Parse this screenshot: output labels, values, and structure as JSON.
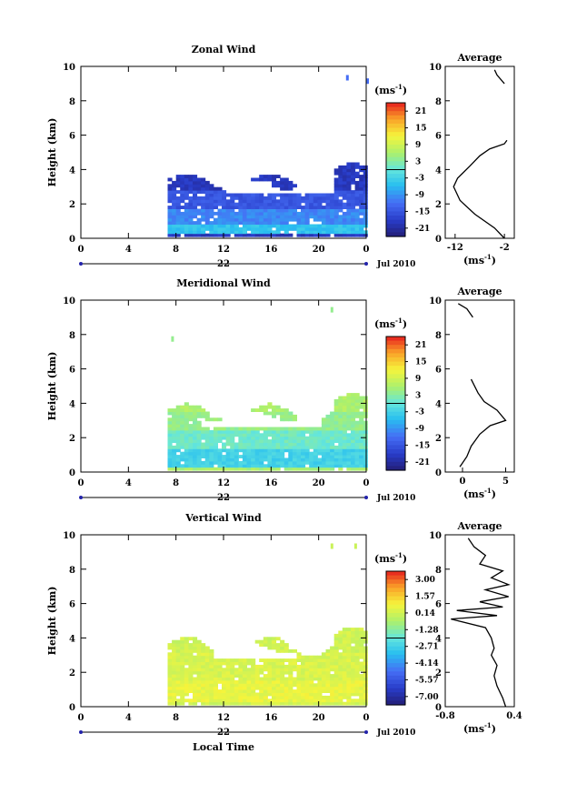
{
  "chart_data": [
    {
      "type": "heatmap",
      "title": "Zonal Wind",
      "ylabel": "Height (km)",
      "x_ticks": [
        "0",
        "4",
        "8",
        "12",
        "16",
        "20",
        "0"
      ],
      "xlim": [
        0,
        24
      ],
      "y_ticks": [
        "0",
        "2",
        "4",
        "6",
        "8",
        "10"
      ],
      "ylim": [
        0,
        10
      ],
      "date_label": "22",
      "date_suffix": "Jul 2010",
      "colorbar": {
        "unit": "(ms",
        "unit_exp": "-1",
        "unit_close": ")",
        "ticks": [
          "21",
          "15",
          "9",
          "3",
          "-3",
          "-9",
          "-15",
          "-21"
        ],
        "range": [
          -24,
          24
        ]
      },
      "field": {
        "time_range": [
          7.3,
          24
        ],
        "top_base": 3.2,
        "top_amp": 0.5,
        "levels": [
          {
            "min": 0.2,
            "max": 0.8,
            "value": -5
          },
          {
            "min": 0.8,
            "max": 1.6,
            "value": -10
          },
          {
            "min": 1.6,
            "max": 2.7,
            "value": -15
          },
          {
            "min": 2.7,
            "max": 3.7,
            "value": -19
          }
        ],
        "gap": {
          "t0": 12,
          "t1": 21,
          "y0": 2.6,
          "y1": 3.0
        },
        "sparse": [
          {
            "t": 22.3,
            "y": 9.3,
            "value": -12
          },
          {
            "t": 24,
            "y": 9.1,
            "value": -12
          }
        ]
      },
      "profile": {
        "title": "Average",
        "x_ticks": [
          "-12",
          "-2"
        ],
        "xlim": [
          -14,
          0
        ],
        "xlabel": "(ms",
        "xlabel_exp": "-1",
        "xlabel_close": ")",
        "y_ticks": [
          "0",
          "2",
          "4",
          "6",
          "8",
          "10"
        ],
        "ylim": [
          0,
          10
        ],
        "points": [
          [
            -2,
            0
          ],
          [
            -4,
            0.6
          ],
          [
            -8,
            1.4
          ],
          [
            -11,
            2.2
          ],
          [
            -12.3,
            3
          ],
          [
            -11.5,
            3.5
          ],
          [
            -9,
            4.2
          ],
          [
            -7,
            4.8
          ],
          [
            -5,
            5.2
          ],
          [
            -2,
            5.5
          ],
          [
            -1.5,
            5.7
          ]
        ],
        "points2": [
          [
            -4,
            9.8
          ],
          [
            -3.5,
            9.5
          ],
          [
            -2,
            9
          ]
        ]
      }
    },
    {
      "type": "heatmap",
      "title": "Meridional Wind",
      "ylabel": "Height (km)",
      "x_ticks": [
        "0",
        "4",
        "8",
        "12",
        "16",
        "20",
        "0"
      ],
      "xlim": [
        0,
        24
      ],
      "y_ticks": [
        "0",
        "2",
        "4",
        "6",
        "8",
        "10"
      ],
      "ylim": [
        0,
        10
      ],
      "date_label": "22",
      "date_suffix": "Jul 2010",
      "colorbar": {
        "unit": "(ms",
        "unit_exp": "-1",
        "unit_close": ")",
        "ticks": [
          "21",
          "15",
          "9",
          "3",
          "-3",
          "-9",
          "-15",
          "-21"
        ],
        "range": [
          -24,
          24
        ]
      },
      "field": {
        "time_range": [
          7.3,
          24
        ],
        "top_base": 3.4,
        "top_amp": 0.5,
        "levels": [
          {
            "min": 0.2,
            "max": 1.2,
            "value": -3
          },
          {
            "min": 1.2,
            "max": 2.4,
            "value": 1
          },
          {
            "min": 2.4,
            "max": 3.4,
            "value": 4
          },
          {
            "min": 3.4,
            "max": 4.2,
            "value": 6
          }
        ],
        "gap": {
          "t0": 10,
          "t1": 20,
          "y0": 2.6,
          "y1": 3.2
        },
        "sparse": [
          {
            "t": 21,
            "y": 9.4,
            "value": 4
          },
          {
            "t": 7.6,
            "y": 7.7,
            "value": 4
          }
        ]
      },
      "profile": {
        "title": "Average",
        "x_ticks": [
          "0",
          "5"
        ],
        "xlim": [
          -2,
          6
        ],
        "xlabel": "(ms",
        "xlabel_exp": "-1",
        "xlabel_close": ")",
        "y_ticks": [
          "0",
          "2",
          "4",
          "6",
          "8",
          "10"
        ],
        "ylim": [
          0,
          10
        ],
        "points": [
          [
            -0.3,
            0.3
          ],
          [
            0.5,
            0.9
          ],
          [
            1,
            1.5
          ],
          [
            2,
            2.2
          ],
          [
            3.2,
            2.7
          ],
          [
            5,
            3
          ],
          [
            4,
            3.6
          ],
          [
            2.5,
            4.1
          ],
          [
            1.8,
            4.6
          ],
          [
            1,
            5.4
          ]
        ],
        "points2": [
          [
            -0.5,
            9.8
          ],
          [
            0.5,
            9.5
          ],
          [
            1.2,
            9
          ]
        ]
      }
    },
    {
      "type": "heatmap",
      "title": "Vertical Wind",
      "ylabel": "Height (km)",
      "xlabel": "Local Time",
      "x_ticks": [
        "0",
        "4",
        "8",
        "12",
        "16",
        "20",
        "0"
      ],
      "xlim": [
        0,
        24
      ],
      "y_ticks": [
        "0",
        "2",
        "4",
        "6",
        "8",
        "10"
      ],
      "ylim": [
        0,
        10
      ],
      "date_label": "22",
      "date_suffix": "Jul 2010",
      "colorbar": {
        "unit": "(ms",
        "unit_exp": "-1",
        "unit_close": ")",
        "ticks": [
          "3.00",
          "1.57",
          "0.14",
          "-1.28",
          "-2.71",
          "-4.14",
          "-5.57",
          "-7.00"
        ],
        "range": [
          -7.715,
          3.715
        ]
      },
      "field": {
        "time_range": [
          7.3,
          24
        ],
        "top_base": 3.4,
        "top_amp": 0.6,
        "levels": [
          {
            "min": 0.2,
            "max": 1.5,
            "value": 0.6
          },
          {
            "min": 1.5,
            "max": 3.0,
            "value": 0.3
          },
          {
            "min": 3.0,
            "max": 4.2,
            "value": 0.1
          }
        ],
        "gap": {
          "t0": 11,
          "t1": 18,
          "y0": 2.8,
          "y1": 3.3
        },
        "sparse": [
          {
            "t": 21,
            "y": 9.3,
            "value": 0
          },
          {
            "t": 23,
            "y": 9.3,
            "value": 0
          }
        ]
      },
      "profile": {
        "title": "Average",
        "x_ticks": [
          "-0.8",
          "0.4"
        ],
        "xlim": [
          -0.8,
          0.4
        ],
        "xlabel": "(ms",
        "xlabel_exp": "-1",
        "xlabel_close": ")",
        "y_ticks": [
          "0",
          "2",
          "4",
          "6",
          "8",
          "10"
        ],
        "ylim": [
          0,
          10
        ],
        "points": [
          [
            0.25,
            0
          ],
          [
            0.2,
            0.5
          ],
          [
            0.1,
            1.2
          ],
          [
            0.05,
            1.8
          ],
          [
            0.1,
            2.4
          ],
          [
            0.0,
            3
          ],
          [
            0.05,
            3.4
          ],
          [
            0.0,
            4
          ],
          [
            -0.1,
            4.6
          ],
          [
            -0.7,
            5.1
          ],
          [
            0.1,
            5.3
          ],
          [
            -0.6,
            5.6
          ],
          [
            0.2,
            5.8
          ],
          [
            -0.2,
            6.1
          ],
          [
            0.3,
            6.4
          ],
          [
            -0.1,
            6.8
          ],
          [
            0.3,
            7.1
          ],
          [
            0.0,
            7.5
          ],
          [
            0.2,
            7.9
          ],
          [
            -0.2,
            8.3
          ],
          [
            -0.1,
            8.8
          ],
          [
            -0.3,
            9.3
          ],
          [
            -0.4,
            9.8
          ]
        ]
      }
    }
  ]
}
